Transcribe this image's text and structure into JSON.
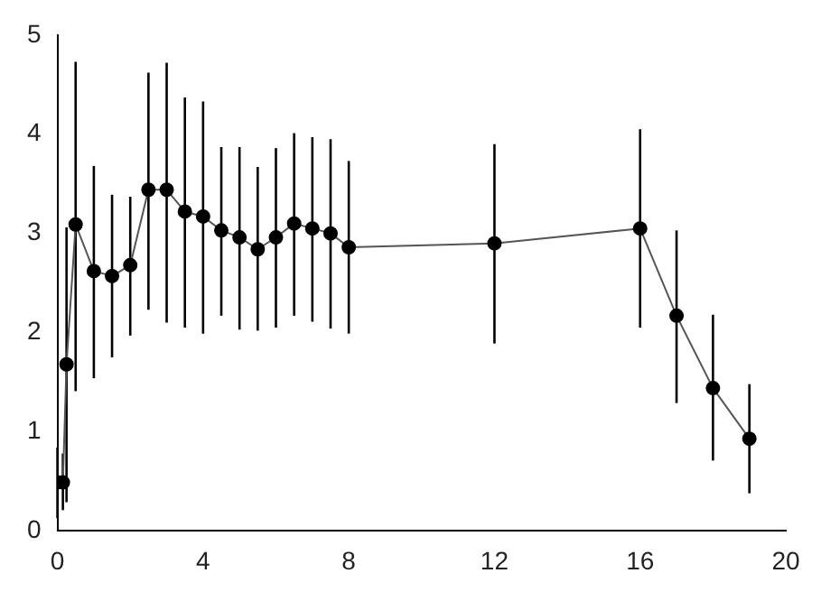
{
  "chart_data": {
    "type": "line",
    "x": [
      0,
      0.15,
      0.25,
      0.5,
      1,
      1.5,
      2,
      2.5,
      3,
      3.5,
      4,
      4.5,
      5,
      5.5,
      6,
      6.5,
      7,
      7.5,
      8,
      12,
      16,
      17,
      18,
      19
    ],
    "series": [
      {
        "color": "#000000",
        "values": [
          0.49,
          0.49,
          1.68,
          3.09,
          2.62,
          2.57,
          2.68,
          3.44,
          3.44,
          3.22,
          3.17,
          3.03,
          2.96,
          2.84,
          2.96,
          3.1,
          3.05,
          3.0,
          2.86,
          2.9,
          3.05,
          2.17,
          1.44,
          0.93
        ],
        "errors": [
          [
            0.13,
            0.84
          ],
          [
            0.21,
            0.78
          ],
          [
            0.29,
            3.06
          ],
          [
            1.41,
            4.73
          ],
          [
            1.54,
            3.68
          ],
          [
            1.75,
            3.39
          ],
          [
            1.97,
            3.37
          ],
          [
            2.23,
            4.62
          ],
          [
            2.1,
            4.72
          ],
          [
            2.05,
            4.37
          ],
          [
            1.99,
            4.33
          ],
          [
            2.17,
            3.87
          ],
          [
            2.03,
            3.87
          ],
          [
            2.02,
            3.67
          ],
          [
            2.05,
            3.86
          ],
          [
            2.17,
            4.01
          ],
          [
            2.11,
            3.97
          ],
          [
            2.04,
            3.95
          ],
          [
            1.99,
            3.73
          ],
          [
            1.89,
            3.9
          ],
          [
            2.05,
            4.05
          ],
          [
            1.29,
            3.03
          ],
          [
            0.71,
            2.18
          ],
          [
            0.38,
            1.48
          ]
        ]
      }
    ],
    "xlim": [
      0,
      20
    ],
    "xticks": [
      0,
      4,
      8,
      12,
      16,
      20
    ],
    "ylim": [
      0,
      5
    ],
    "yticks": [
      0,
      1,
      2,
      3,
      4,
      5
    ],
    "grid": false,
    "legend": false,
    "marker": "circle",
    "line_style": "solid"
  }
}
